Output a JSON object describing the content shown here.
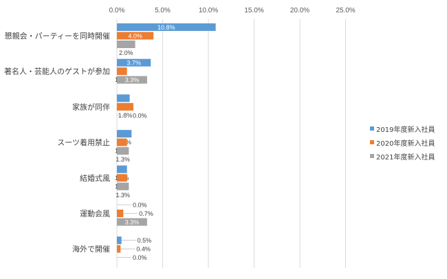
{
  "chart_data": {
    "type": "bar",
    "orientation": "horizontal",
    "x_ticks": [
      "0.0%",
      "5.0%",
      "10.0%",
      "15.0%",
      "20.0%",
      "25.0%"
    ],
    "xlim": [
      0,
      25
    ],
    "grid": true,
    "legend_position": "right",
    "categories": [
      "懇親会・パーティーを同時開催",
      "著名人・芸能人のゲストが参加",
      "家族が同伴",
      "スーツ着用禁止",
      "結婚式風",
      "運動会風",
      "海外で開催"
    ],
    "series": [
      {
        "name": "2019年度新入社員",
        "color": "#5b9bd5",
        "values": [
          10.8,
          3.7,
          1.4,
          1.6,
          1.1,
          0.0,
          0.5
        ],
        "labels": [
          "10.8%",
          "3.7%",
          "1.4%",
          "1.6%",
          "1.1%",
          "0.0%",
          "0.5%"
        ]
      },
      {
        "name": "2020年度新入社員",
        "color": "#ed7d31",
        "values": [
          4.0,
          1.1,
          1.8,
          1.1,
          1.1,
          0.7,
          0.4
        ],
        "labels": [
          "4.0%",
          "1.1%",
          "1.8%",
          "1.1%",
          "1.1%",
          "0.7%",
          "0.4%"
        ]
      },
      {
        "name": "2021年度新入社員",
        "color": "#a5a5a5",
        "values": [
          2.0,
          3.3,
          0.0,
          1.3,
          1.3,
          3.3,
          0.0
        ],
        "labels": [
          "2.0%",
          "3.3%",
          "0.0%",
          "1.3%",
          "1.3%",
          "3.3%",
          "0.0%"
        ]
      }
    ]
  }
}
